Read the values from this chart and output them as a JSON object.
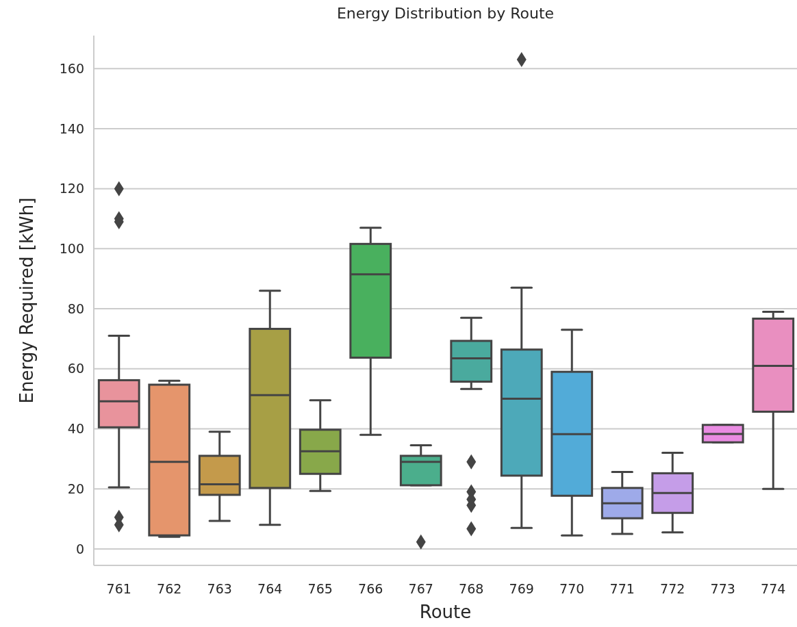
{
  "chart_data": {
    "type": "box",
    "title": "Energy Distribution by Route",
    "xlabel": "Route",
    "ylabel": "Energy Required [kWh]",
    "categories": [
      "761",
      "762",
      "763",
      "764",
      "765",
      "766",
      "767",
      "768",
      "769",
      "770",
      "771",
      "772",
      "773",
      "774"
    ],
    "colors": [
      "#e8939c",
      "#e5956c",
      "#c49a4b",
      "#a79f45",
      "#88a84a",
      "#49b05e",
      "#4bae8c",
      "#4aaa9e",
      "#4da9b9",
      "#52abd8",
      "#9eaae9",
      "#c59de8",
      "#e98be2",
      "#e98fc0"
    ],
    "boxes": [
      {
        "low": 20.5,
        "q1": 40.5,
        "median": 49.2,
        "q3": 56.2,
        "high": 71,
        "outliers": [
          120,
          110,
          109,
          10.5,
          8
        ]
      },
      {
        "low": 4,
        "q1": 4.5,
        "median": 29,
        "q3": 54.7,
        "high": 56
      },
      {
        "low": 9.3,
        "q1": 18,
        "median": 21.5,
        "q3": 31,
        "high": 39
      },
      {
        "low": 8,
        "q1": 20.3,
        "median": 51.2,
        "q3": 73.3,
        "high": 86
      },
      {
        "low": 19.3,
        "q1": 25,
        "median": 32.5,
        "q3": 39.7,
        "high": 49.5
      },
      {
        "low": 38,
        "q1": 63.7,
        "median": 91.5,
        "q3": 101.6,
        "high": 107
      },
      {
        "low": 21.2,
        "q1": 21.2,
        "median": 29,
        "q3": 31,
        "high": 34.5,
        "outliers": [
          2.3
        ]
      },
      {
        "low": 53.3,
        "q1": 55.7,
        "median": 63.5,
        "q3": 69.3,
        "high": 77,
        "outliers": [
          29,
          19,
          16.5,
          14.5,
          6.7
        ]
      },
      {
        "low": 7,
        "q1": 24.4,
        "median": 50,
        "q3": 66.4,
        "high": 87,
        "outliers": [
          163
        ]
      },
      {
        "low": 4.5,
        "q1": 17.7,
        "median": 38.2,
        "q3": 59,
        "high": 73
      },
      {
        "low": 5,
        "q1": 10.2,
        "median": 15.2,
        "q3": 20.3,
        "high": 25.6
      },
      {
        "low": 5.5,
        "q1": 12,
        "median": 18.6,
        "q3": 25.2,
        "high": 32
      },
      {
        "low": 35.5,
        "q1": 35.5,
        "median": 38.3,
        "q3": 41.3,
        "high": 41.3
      },
      {
        "low": 20,
        "q1": 45.7,
        "median": 61,
        "q3": 76.7,
        "high": 79
      }
    ],
    "ylim": [
      -5.5,
      171
    ],
    "yticks": [
      0,
      20,
      40,
      60,
      80,
      100,
      120,
      140,
      160
    ],
    "grid": "y",
    "marker": "diamond"
  }
}
